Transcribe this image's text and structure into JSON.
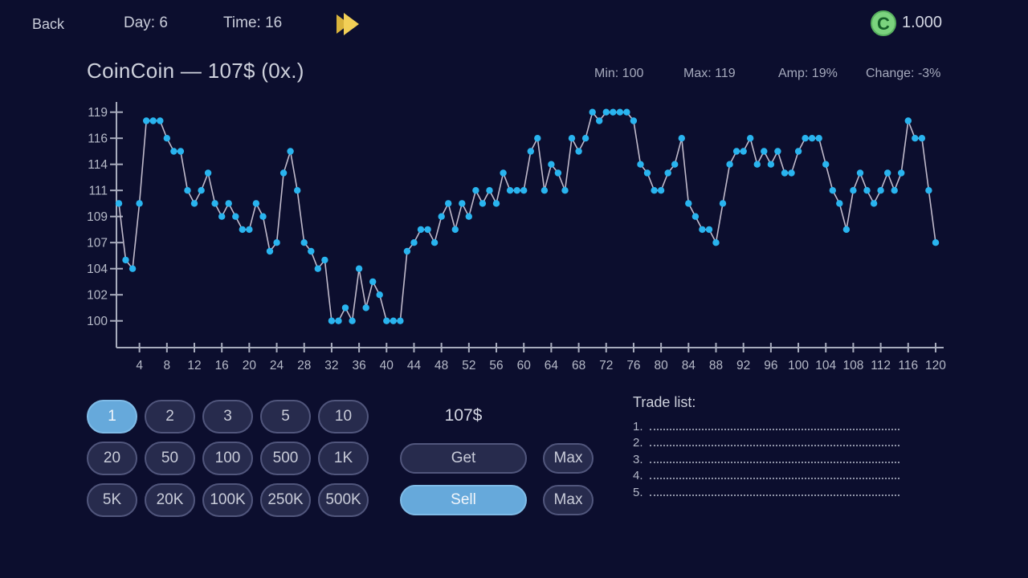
{
  "top_bar": {
    "back_label": "Back",
    "day_label": "Day: 6",
    "time_label": "Time: 16",
    "fast_forward_icon": "double-play-triangles",
    "coin_letter": "C",
    "balance": "1.000"
  },
  "header": {
    "title": "CoinCoin — 107$ (0x.)",
    "stats": {
      "min": "Min: 100",
      "max": "Max: 119",
      "amp": "Amp: 19%",
      "change": "Change: -3%"
    }
  },
  "chart_data": {
    "type": "line",
    "title": "CoinCoin price history",
    "x_start": 1,
    "x_step": 1,
    "x_tick_labels": [
      4,
      8,
      12,
      16,
      20,
      24,
      28,
      32,
      36,
      40,
      44,
      48,
      52,
      56,
      60,
      64,
      68,
      72,
      76,
      80,
      84,
      88,
      92,
      96,
      100,
      104,
      108,
      112,
      116,
      120
    ],
    "y_tick_labels": [
      119,
      116,
      114,
      111,
      109,
      107,
      104,
      102,
      100
    ],
    "y_ticks_evenly_spaced": true,
    "grid": false,
    "legend": null,
    "line_color": "#c0bacb",
    "point_color": "#29b4ef",
    "values": [
      110,
      105,
      104,
      110,
      118,
      118,
      118,
      116,
      115,
      115,
      111,
      110,
      111,
      113,
      110,
      109,
      110,
      109,
      108,
      108,
      110,
      109,
      106,
      107,
      113,
      115,
      111,
      107,
      106,
      104,
      105,
      100,
      100,
      101,
      100,
      104,
      101,
      103,
      102,
      100,
      100,
      100,
      106,
      107,
      108,
      108,
      107,
      109,
      110,
      108,
      110,
      109,
      111,
      110,
      111,
      110,
      113,
      111,
      111,
      111,
      115,
      116,
      111,
      114,
      113,
      111,
      116,
      115,
      116,
      119,
      118,
      119,
      119,
      119,
      119,
      118,
      114,
      113,
      111,
      111,
      113,
      114,
      116,
      110,
      109,
      108,
      108,
      107,
      110,
      114,
      115,
      115,
      116,
      114,
      115,
      114,
      115,
      113,
      113,
      115,
      116,
      116,
      116,
      114,
      111,
      110,
      108,
      111,
      113,
      111,
      110,
      111,
      113,
      111,
      113,
      118,
      116,
      116,
      111,
      107
    ],
    "stats": {
      "min": 100,
      "max": 119,
      "amp_pct": "19%",
      "change_pct": "-3%",
      "current": "107$"
    }
  },
  "trade_panel": {
    "amount_buttons": [
      "1",
      "2",
      "3",
      "5",
      "10",
      "20",
      "50",
      "100",
      "500",
      "1K",
      "5K",
      "20K",
      "100K",
      "250K",
      "500K"
    ],
    "selected_amount": "1",
    "price_label": "107$",
    "get_label": "Get",
    "sell_label": "Sell",
    "max_label": "Max",
    "selected_action": "Sell"
  },
  "trade_list": {
    "title": "Trade list:",
    "items": [
      "1.",
      "2.",
      "3.",
      "4.",
      "5."
    ]
  },
  "colors": {
    "background": "#0c0e2e",
    "button_fill": "#272b4d",
    "button_border": "#51567c",
    "selected_blue": "#66a9db",
    "chart_point": "#29b4ef",
    "chart_line": "#c0bacb",
    "axis": "#a9adbe",
    "coin_green": "#7bd37e",
    "gold_dark": "#d9b33c",
    "gold_light": "#f2cf57"
  }
}
